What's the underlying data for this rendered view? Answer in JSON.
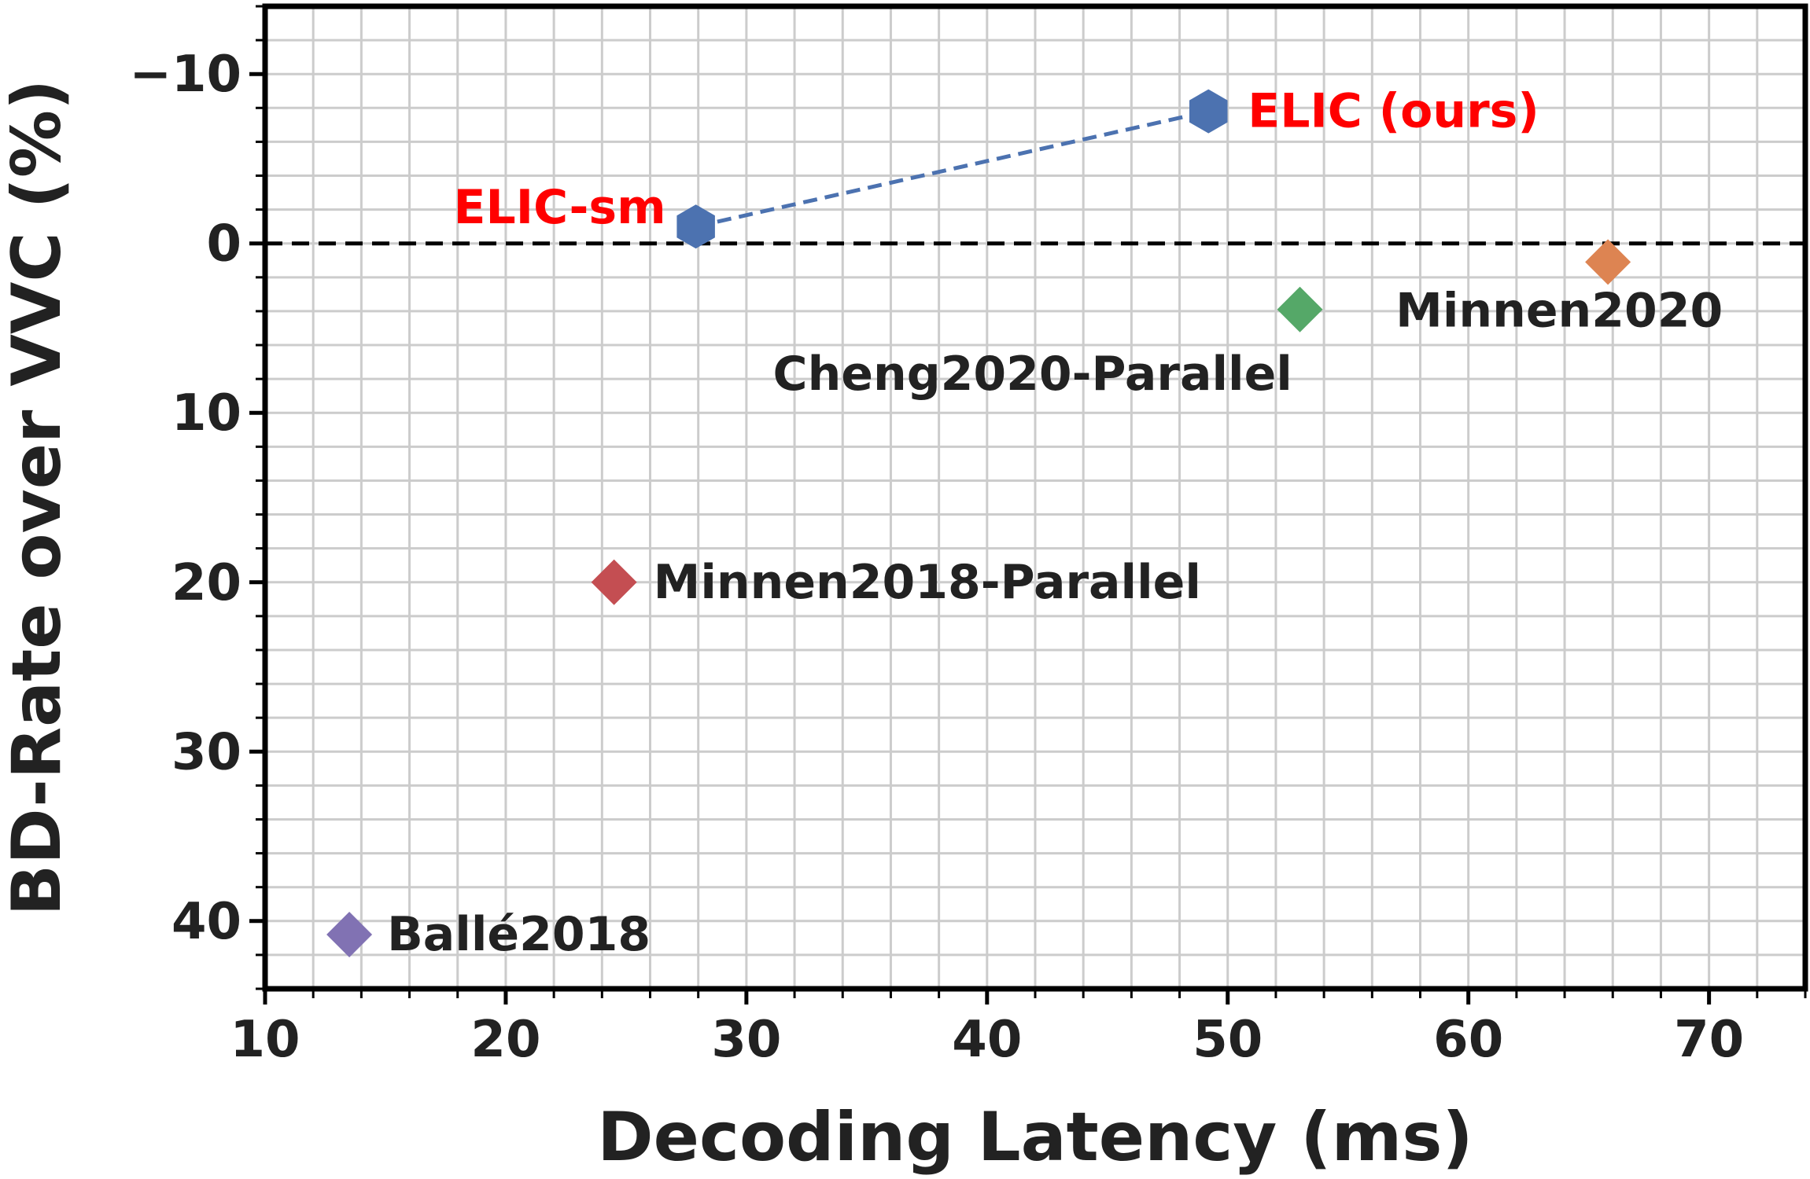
{
  "chart_data": {
    "type": "scatter",
    "xlabel": "Decoding Latency (ms)",
    "ylabel": "BD-Rate over VVC (%)",
    "xlim": [
      10,
      74
    ],
    "ylim": [
      -14,
      44
    ],
    "y_inverted": true,
    "grid": true,
    "x_ticks": [
      10,
      20,
      30,
      40,
      50,
      60,
      70
    ],
    "y_ticks": [
      -10,
      0,
      10,
      20,
      30,
      40
    ],
    "y_tick_labels": [
      "−10",
      "0",
      "10",
      "20",
      "30",
      "40"
    ],
    "reference_line": {
      "y": 0,
      "style": "dashed",
      "color": "#000000"
    },
    "series": [
      {
        "name": "ELIC (ours)",
        "x": 49.2,
        "y": -7.8,
        "marker": "hexagon",
        "color": "#4c72b0",
        "label_color": "#ff0000"
      },
      {
        "name": "ELIC-sm",
        "x": 27.9,
        "y": -1.0,
        "marker": "hexagon",
        "color": "#4c72b0",
        "label_color": "#ff0000"
      },
      {
        "name": "Minnen2020",
        "x": 65.8,
        "y": 1.1,
        "marker": "diamond",
        "color": "#dd8452",
        "label_color": "#222222"
      },
      {
        "name": "Cheng2020-Parallel",
        "x": 53.0,
        "y": 3.9,
        "marker": "diamond",
        "color": "#55a868",
        "label_color": "#222222"
      },
      {
        "name": "Minnen2018-Parallel",
        "x": 24.5,
        "y": 20.0,
        "marker": "diamond",
        "color": "#c44e52",
        "label_color": "#222222"
      },
      {
        "name": "Ballé2018",
        "x": 13.5,
        "y": 40.8,
        "marker": "diamond",
        "color": "#8172b3",
        "label_color": "#222222"
      }
    ],
    "connector": {
      "from": "ELIC-sm",
      "to": "ELIC (ours)",
      "style": "dashed",
      "color": "#4c72b0"
    }
  }
}
